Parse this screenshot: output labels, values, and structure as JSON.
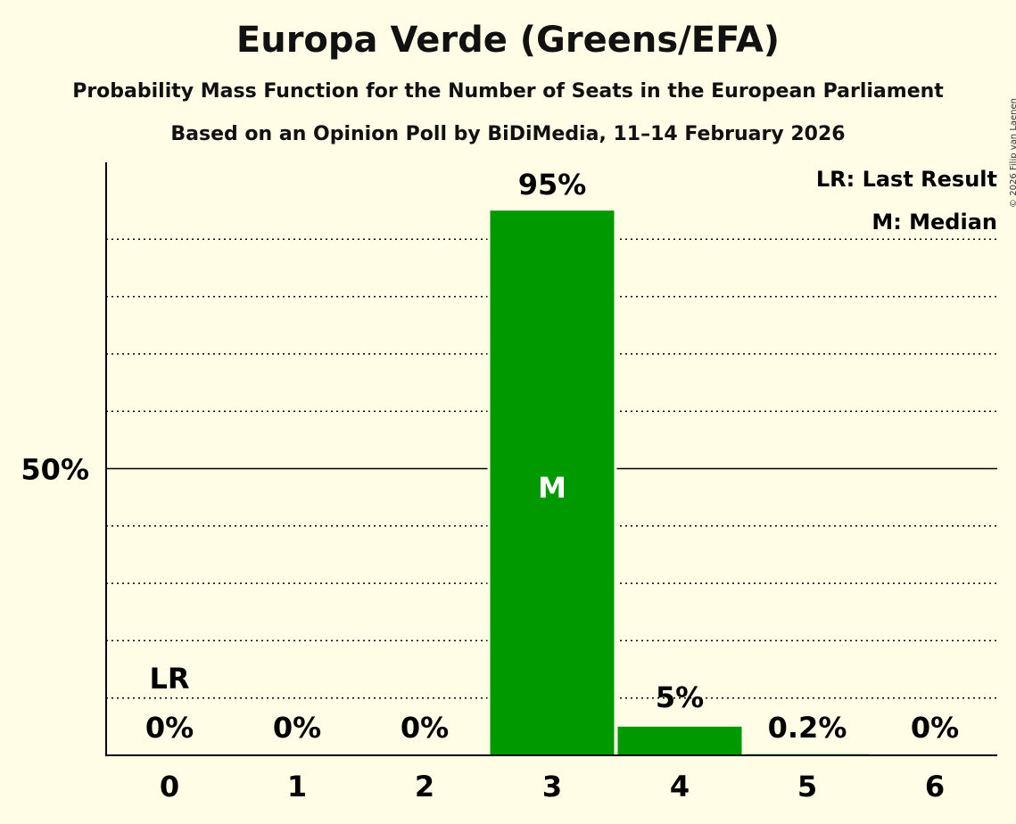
{
  "title": "Europa Verde (Greens/EFA)",
  "subtitle": "Probability Mass Function for the Number of Seats in the European Parliament",
  "subtitle2": "Based on an Opinion Poll by BiDiMedia, 11–14 February 2026",
  "copyright": "© 2026 Filip van Laenen",
  "legend": {
    "last_result": "LR: Last Result",
    "median": "M: Median"
  },
  "colors": {
    "bar": "#009900",
    "background": "#fffde6",
    "axis": "#000000"
  },
  "chart_data": {
    "type": "bar",
    "title": "Europa Verde (Greens/EFA)",
    "xlabel": "",
    "ylabel": "",
    "categories": [
      "0",
      "1",
      "2",
      "3",
      "4",
      "5",
      "6"
    ],
    "values": [
      0,
      0,
      0,
      95,
      5,
      0.2,
      0
    ],
    "value_labels": [
      "0%",
      "0%",
      "0%",
      "95%",
      "5%",
      "0.2%",
      "0%"
    ],
    "ylim": [
      0,
      100
    ],
    "ytick_label": "50%",
    "ytick_value": 50,
    "gridlines": [
      10,
      20,
      30,
      40,
      60,
      70,
      80,
      90
    ],
    "last_result_index": 0,
    "last_result_label": "LR",
    "median_index": 3,
    "median_label": "M"
  }
}
